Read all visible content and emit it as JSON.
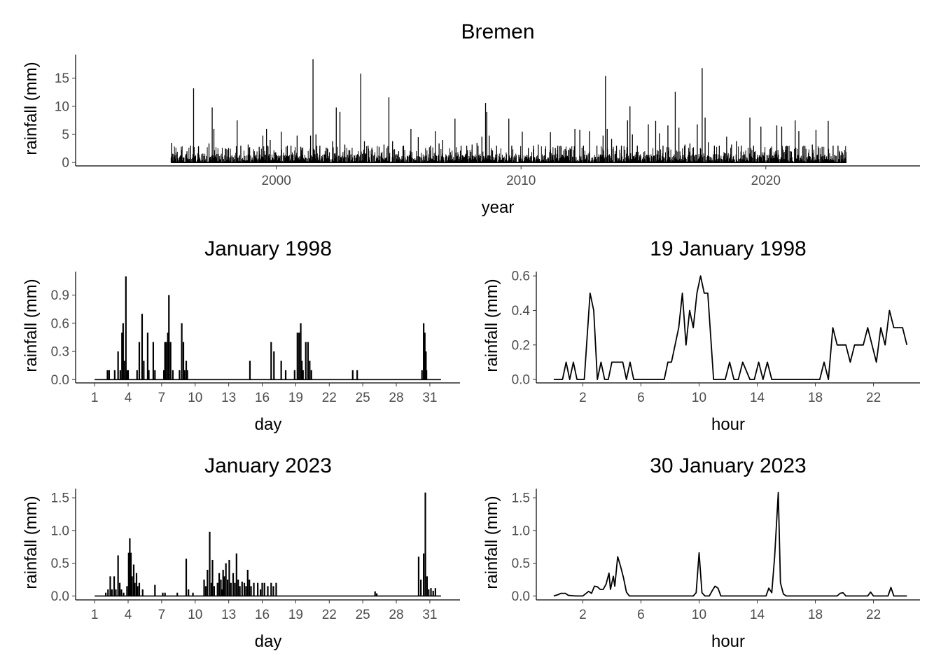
{
  "chart_data": [
    {
      "panel": "overview",
      "type": "bar",
      "title": "Bremen",
      "xlabel": "year",
      "ylabel": "rainfall (mm)",
      "xlim": [
        1991.8,
        2026.3
      ],
      "ylim": [
        -0.6,
        19.2
      ],
      "x_ticks": [
        2000,
        2010,
        2020
      ],
      "y_ticks": [
        0,
        5,
        10,
        15
      ],
      "x_range": [
        1995.7,
        2023.3
      ],
      "baseline_max": 1.5,
      "moderate_max": 3.0,
      "grid": false,
      "series": [
        {
          "x": [
            1995.72,
            1995.9,
            1996.35,
            1996.5,
            1996.62,
            1996.82,
            1997.0,
            1997.25,
            1997.38,
            1997.45,
            1997.95,
            1998.05,
            1998.4,
            1998.55,
            1998.85,
            1999.1,
            1999.3,
            1999.45,
            1999.6,
            1999.65,
            1999.75,
            2000.2,
            2000.45,
            2000.6,
            2000.85,
            2001.0,
            2001.4,
            2001.5,
            2001.62,
            2001.78,
            2002.1,
            2002.3,
            2002.45,
            2002.6,
            2002.8,
            2003.0,
            2003.45,
            2003.6,
            2003.75,
            2003.9,
            2004.2,
            2004.4,
            2004.6,
            2004.75,
            2005.0,
            2005.2,
            2005.5,
            2005.8,
            2006.3,
            2006.5,
            2006.65,
            2006.8,
            2007.3,
            2007.55,
            2007.78,
            2008.0,
            2008.2,
            2008.4,
            2008.55,
            2008.6,
            2008.7,
            2009.0,
            2009.5,
            2009.62,
            2010.05,
            2010.3,
            2010.5,
            2010.7,
            2011.2,
            2011.4,
            2011.5,
            2011.8,
            2012.2,
            2012.4,
            2012.55,
            2012.8,
            2013.1,
            2013.35,
            2013.45,
            2013.52,
            2013.7,
            2013.9,
            2014.1,
            2014.35,
            2014.45,
            2014.55,
            2014.75,
            2015.2,
            2015.5,
            2015.65,
            2015.8,
            2016.0,
            2016.3,
            2016.45,
            2016.7,
            2016.9,
            2017.2,
            2017.4,
            2017.52,
            2017.65,
            2017.9,
            2018.1,
            2018.4,
            2018.6,
            2018.8,
            2019.0,
            2019.35,
            2019.5,
            2019.8,
            2020.2,
            2020.45,
            2020.65,
            2020.85,
            2021.2,
            2021.35,
            2021.55,
            2021.9,
            2022.05,
            2022.3,
            2022.55,
            2022.75,
            2022.95,
            2023.1
          ],
          "y": [
            3.5,
            1.8,
            2.0,
            3.0,
            13.2,
            2.8,
            1.6,
            3.4,
            9.8,
            6.0,
            2.4,
            2.6,
            7.5,
            3.0,
            3.2,
            2.0,
            2.8,
            4.8,
            6.0,
            3.0,
            4.0,
            5.5,
            3.0,
            3.0,
            4.8,
            2.8,
            4.8,
            18.4,
            5.0,
            3.0,
            2.4,
            3.8,
            9.8,
            9.0,
            3.2,
            2.2,
            15.8,
            3.8,
            3.0,
            2.4,
            2.8,
            3.2,
            11.6,
            3.8,
            2.0,
            3.0,
            6.0,
            4.5,
            3.0,
            5.6,
            3.4,
            4.0,
            7.8,
            3.0,
            3.0,
            3.2,
            3.5,
            4.6,
            10.6,
            9.0,
            4.8,
            3.0,
            7.8,
            3.0,
            5.5,
            2.6,
            3.0,
            3.2,
            5.4,
            2.6,
            3.0,
            2.4,
            6.0,
            5.8,
            3.0,
            5.6,
            3.0,
            4.8,
            15.4,
            6.0,
            4.2,
            3.0,
            3.0,
            7.5,
            10.0,
            5.0,
            3.0,
            6.8,
            7.4,
            5.2,
            3.0,
            6.6,
            12.6,
            6.2,
            3.2,
            3.4,
            6.8,
            16.8,
            8.0,
            3.6,
            3.0,
            3.0,
            4.6,
            3.2,
            3.8,
            3.0,
            8.0,
            3.0,
            6.4,
            2.6,
            6.6,
            6.4,
            3.0,
            7.5,
            5.6,
            3.0,
            3.2,
            5.8,
            2.8,
            7.4,
            3.0,
            3.0,
            2.0
          ]
        }
      ]
    },
    {
      "panel": "month-1998",
      "type": "bar",
      "title": "January 1998",
      "xlabel": "day",
      "ylabel": "rainfall (mm)",
      "xlim": [
        -0.7,
        33.7
      ],
      "ylim": [
        -0.035,
        1.15
      ],
      "x_ticks": [
        1,
        4,
        7,
        10,
        13,
        16,
        19,
        22,
        25,
        28,
        31
      ],
      "y_ticks": [
        0.0,
        0.3,
        0.6,
        0.9
      ],
      "y_tick_labels": [
        "0.0",
        "0.3",
        "0.6",
        "0.9"
      ],
      "x_range": [
        1,
        32
      ],
      "grid": false,
      "series": [
        {
          "x": [
            2.15,
            2.3,
            2.8,
            3.1,
            3.3,
            3.45,
            3.55,
            3.65,
            3.8,
            3.9,
            4.0,
            4.8,
            5.0,
            5.25,
            5.4,
            5.75,
            5.85,
            6.25,
            6.4,
            7.2,
            7.3,
            7.4,
            7.55,
            7.65,
            7.8,
            8.0,
            8.6,
            8.8,
            8.95,
            9.05,
            9.2,
            9.3,
            14.9,
            16.8,
            17.05,
            17.7,
            18.1,
            18.9,
            19.15,
            19.3,
            19.45,
            19.55,
            19.65,
            19.9,
            20.1,
            20.25,
            20.4,
            24.1,
            24.5,
            30.3,
            30.45,
            30.55,
            30.65,
            30.7
          ],
          "y": [
            0.1,
            0.1,
            0.1,
            0.3,
            0.1,
            0.5,
            0.6,
            0.2,
            1.1,
            0.1,
            0.1,
            0.1,
            0.4,
            0.7,
            0.2,
            0.5,
            0.1,
            0.4,
            0.1,
            0.1,
            0.4,
            0.4,
            0.5,
            0.9,
            0.4,
            0.1,
            0.1,
            0.6,
            0.4,
            0.1,
            0.2,
            0.1,
            0.2,
            0.4,
            0.3,
            0.2,
            0.1,
            0.1,
            0.5,
            0.5,
            0.6,
            0.2,
            0.1,
            0.4,
            0.4,
            0.2,
            0.1,
            0.1,
            0.1,
            0.1,
            0.6,
            0.5,
            0.3,
            0.1
          ]
        }
      ]
    },
    {
      "panel": "day-1998",
      "type": "line",
      "title": "19 January 1998",
      "xlabel": "hour",
      "ylabel": "rainfall (mm)",
      "xlim": [
        -1.2,
        25.2
      ],
      "ylim": [
        -0.02,
        0.625
      ],
      "x_ticks": [
        2,
        6,
        10,
        14,
        18,
        22
      ],
      "y_ticks": [
        0.0,
        0.2,
        0.4,
        0.6
      ],
      "y_tick_labels": [
        "0.0",
        "0.2",
        "0.4",
        "0.6"
      ],
      "grid": false,
      "series": [
        {
          "x": [
            0,
            0.6,
            0.85,
            1.1,
            1.35,
            1.6,
            1.85,
            2.1,
            2.5,
            2.75,
            3.0,
            3.25,
            3.5,
            3.75,
            4.0,
            4.25,
            4.5,
            4.75,
            5.0,
            5.25,
            5.5,
            7.6,
            7.85,
            8.1,
            8.35,
            8.6,
            8.85,
            9.1,
            9.35,
            9.6,
            9.85,
            10.1,
            10.35,
            10.6,
            11.0,
            11.5,
            11.8,
            12.1,
            12.4,
            12.7,
            13.0,
            13.5,
            13.8,
            14.1,
            14.4,
            14.7,
            15.0,
            15.5,
            18.0,
            18.3,
            18.6,
            18.9,
            19.2,
            19.5,
            19.8,
            20.1,
            20.4,
            20.7,
            21.0,
            21.3,
            21.6,
            21.9,
            22.2,
            22.5,
            22.8,
            23.1,
            23.4,
            23.7,
            24.0,
            24.3
          ],
          "y": [
            0.0,
            0.0,
            0.1,
            0.0,
            0.1,
            0.0,
            0.0,
            0.0,
            0.5,
            0.4,
            0.0,
            0.1,
            0.0,
            0.0,
            0.1,
            0.1,
            0.1,
            0.1,
            0.0,
            0.1,
            0.0,
            0.0,
            0.1,
            0.1,
            0.2,
            0.3,
            0.5,
            0.2,
            0.4,
            0.3,
            0.5,
            0.6,
            0.5,
            0.5,
            0.0,
            0.0,
            0.0,
            0.1,
            0.0,
            0.0,
            0.1,
            0.0,
            0.0,
            0.1,
            0.0,
            0.1,
            0.0,
            0.0,
            0.0,
            0.0,
            0.1,
            0.0,
            0.3,
            0.2,
            0.2,
            0.2,
            0.1,
            0.2,
            0.2,
            0.2,
            0.3,
            0.2,
            0.1,
            0.3,
            0.2,
            0.4,
            0.3,
            0.3,
            0.3,
            0.2
          ]
        }
      ]
    },
    {
      "panel": "month-2023",
      "type": "bar",
      "title": "January 2023",
      "xlabel": "day",
      "ylabel": "rainfall (mm)",
      "xlim": [
        -0.7,
        33.7
      ],
      "ylim": [
        -0.06,
        1.64
      ],
      "x_ticks": [
        1,
        4,
        7,
        10,
        13,
        16,
        19,
        22,
        25,
        28,
        31
      ],
      "y_ticks": [
        0.0,
        0.5,
        1.0,
        1.5
      ],
      "y_tick_labels": [
        "0.0",
        "0.5",
        "1.0",
        "1.5"
      ],
      "x_range": [
        1,
        32
      ],
      "grid": false,
      "series": [
        {
          "x": [
            2.0,
            2.2,
            2.4,
            2.55,
            2.75,
            2.9,
            3.1,
            3.25,
            3.4,
            3.6,
            3.9,
            4.05,
            4.15,
            4.25,
            4.35,
            4.5,
            4.6,
            4.75,
            4.85,
            5.0,
            5.3,
            6.4,
            7.1,
            7.3,
            8.4,
            9.2,
            9.4,
            9.8,
            10.8,
            10.95,
            11.1,
            11.3,
            11.45,
            11.55,
            11.7,
            12.0,
            12.15,
            12.3,
            12.4,
            12.5,
            12.6,
            12.75,
            12.9,
            13.05,
            13.2,
            13.4,
            13.55,
            13.7,
            13.85,
            14.0,
            14.2,
            14.4,
            14.55,
            14.7,
            14.85,
            15.0,
            15.25,
            15.6,
            15.85,
            16.0,
            16.2,
            16.5,
            16.8,
            17.0,
            17.25,
            26.1,
            26.25,
            30.0,
            30.2,
            30.45,
            30.6,
            30.75,
            30.9,
            31.1,
            31.3,
            31.5
          ],
          "y": [
            0.05,
            0.1,
            0.3,
            0.1,
            0.3,
            0.1,
            0.62,
            0.2,
            0.1,
            0.05,
            0.15,
            0.66,
            0.88,
            0.66,
            0.3,
            0.48,
            0.2,
            0.35,
            0.15,
            0.2,
            0.1,
            0.17,
            0.05,
            0.05,
            0.05,
            0.57,
            0.1,
            0.05,
            0.25,
            0.15,
            0.4,
            0.98,
            0.2,
            0.55,
            0.15,
            0.2,
            0.35,
            0.25,
            0.1,
            0.4,
            0.3,
            0.5,
            0.25,
            0.55,
            0.2,
            0.35,
            0.2,
            0.65,
            0.25,
            0.15,
            0.22,
            0.2,
            0.15,
            0.4,
            0.25,
            0.15,
            0.2,
            0.2,
            0.1,
            0.2,
            0.2,
            0.15,
            0.2,
            0.15,
            0.2,
            0.07,
            0.04,
            0.6,
            0.25,
            0.65,
            1.58,
            0.3,
            0.1,
            0.12,
            0.08,
            0.12
          ]
        }
      ]
    },
    {
      "panel": "day-2023",
      "type": "line",
      "title": "30 January 2023",
      "xlabel": "hour",
      "ylabel": "rainfall (mm)",
      "xlim": [
        -1.2,
        25.2
      ],
      "ylim": [
        -0.06,
        1.64
      ],
      "x_ticks": [
        2,
        6,
        10,
        14,
        18,
        22
      ],
      "y_ticks": [
        0.0,
        0.5,
        1.0,
        1.5
      ],
      "y_tick_labels": [
        "0.0",
        "0.5",
        "1.0",
        "1.5"
      ],
      "grid": false,
      "series": [
        {
          "x": [
            0,
            0.3,
            0.5,
            0.8,
            1.0,
            1.5,
            2.0,
            2.4,
            2.6,
            2.8,
            3.0,
            3.2,
            3.4,
            3.6,
            3.8,
            3.9,
            4.1,
            4.2,
            4.4,
            4.6,
            4.8,
            5.0,
            5.2,
            5.5,
            9.6,
            9.8,
            10.0,
            10.2,
            10.4,
            10.7,
            10.9,
            11.1,
            11.3,
            11.5,
            14.6,
            14.8,
            15.0,
            15.2,
            15.45,
            15.6,
            15.8,
            16.0,
            19.5,
            19.7,
            19.9,
            20.1,
            21.6,
            21.8,
            22.0,
            23.0,
            23.2,
            23.4,
            24.3
          ],
          "y": [
            0.0,
            0.02,
            0.04,
            0.04,
            0.01,
            0.0,
            0.0,
            0.07,
            0.04,
            0.15,
            0.14,
            0.1,
            0.1,
            0.18,
            0.35,
            0.1,
            0.3,
            0.15,
            0.6,
            0.45,
            0.28,
            0.06,
            0.0,
            0.0,
            0.0,
            0.05,
            0.66,
            0.05,
            0.0,
            0.0,
            0.08,
            0.15,
            0.12,
            0.0,
            0.0,
            0.12,
            0.05,
            0.6,
            1.58,
            0.2,
            0.03,
            0.0,
            0.0,
            0.04,
            0.05,
            0.0,
            0.0,
            0.06,
            0.0,
            0.0,
            0.13,
            0.0,
            0.0
          ]
        }
      ]
    }
  ]
}
